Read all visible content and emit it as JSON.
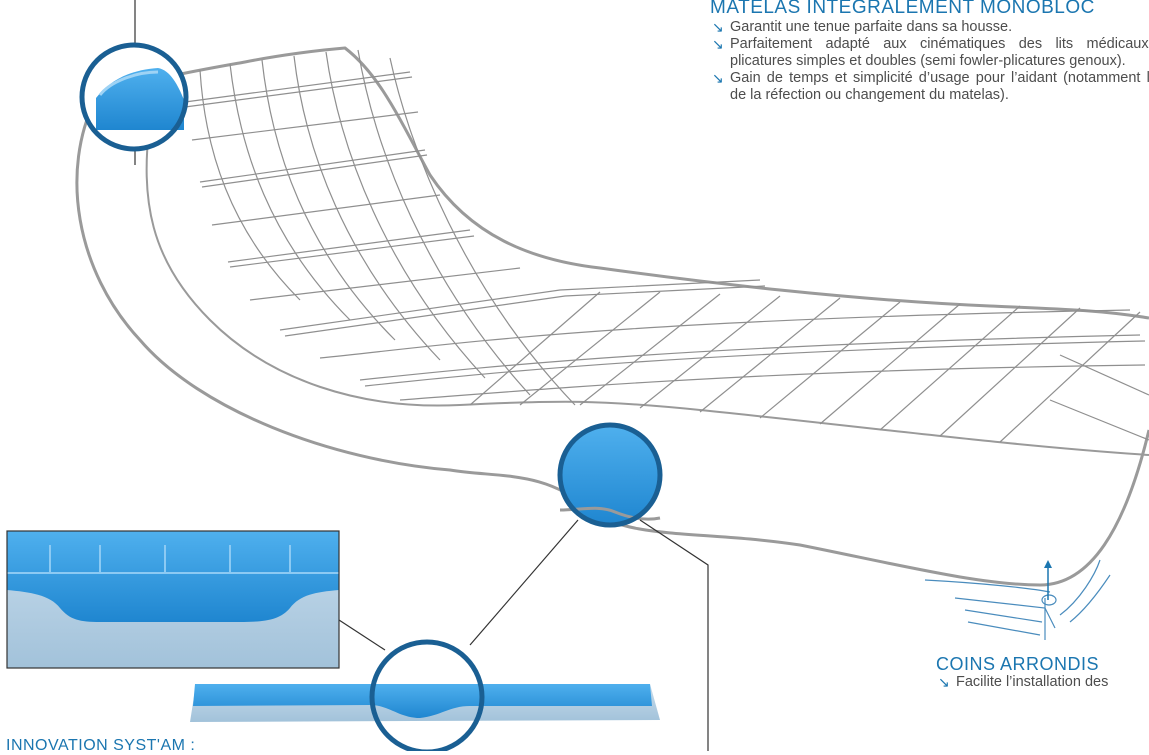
{
  "sections": {
    "monobloc": {
      "title": "MATELAS INTÉGRALEMENT MONOBLOC",
      "bullets": [
        "Garantit une tenue parfaite dans sa housse.",
        "Parfaitement adapté aux cinématiques des lits médicaux à plicatures simples et doubles (semi fowler-plicatures genoux).",
        "Gain de temps et simplicité d’usage pour l’aidant (notamment lors de la réfection ou changement du matelas)."
      ]
    },
    "corners": {
      "title": "COINS ARRONDIS",
      "bullets": [
        "Facilite l’installation des"
      ]
    },
    "innovation": {
      "title": "INNOVATION SYST'AM :"
    }
  },
  "icons": {
    "bullet": "arrow-down-right-icon"
  },
  "colors": {
    "accent": "#1b76b0",
    "mattress_outline": "#9a9a9a",
    "foam_blue": "#3ea0e0",
    "foam_base": "#a9c8de"
  }
}
